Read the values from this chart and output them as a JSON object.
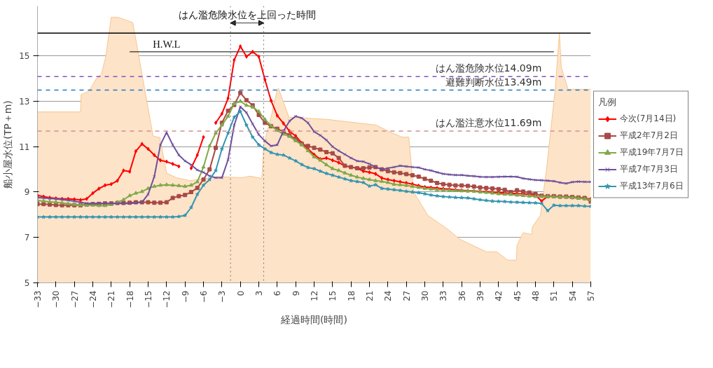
{
  "chart_data": {
    "type": "line",
    "xlabel": "経過時間(時間)",
    "ylabel": "船小屋水位(TP＋m)",
    "legend_title": "凡例",
    "x": [
      -33,
      -32,
      -31,
      -30,
      -29,
      -28,
      -27,
      -26,
      -25,
      -24,
      -23,
      -22,
      -21,
      -20,
      -19,
      -18,
      -17,
      -16,
      -15,
      -14,
      -13,
      -12,
      -11,
      -10,
      -9,
      -8,
      -7,
      -6,
      -5,
      -4,
      -3,
      -2,
      -1,
      0,
      1,
      2,
      3,
      4,
      5,
      6,
      7,
      8,
      9,
      10,
      11,
      12,
      13,
      14,
      15,
      16,
      17,
      18,
      19,
      20,
      21,
      22,
      23,
      24,
      25,
      26,
      27,
      28,
      29,
      30,
      31,
      32,
      33,
      34,
      35,
      36,
      37,
      38,
      39,
      40,
      41,
      42,
      43,
      44,
      45,
      46,
      47,
      48,
      49,
      50,
      51,
      52,
      53,
      54,
      55,
      56,
      57
    ],
    "xlim": [
      -33,
      57
    ],
    "xticks": [
      -33,
      -30,
      -27,
      -24,
      -21,
      -18,
      -15,
      -12,
      -9,
      -6,
      -3,
      0,
      3,
      6,
      9,
      12,
      15,
      18,
      21,
      24,
      27,
      30,
      33,
      36,
      39,
      42,
      45,
      48,
      51,
      54,
      57
    ],
    "ylim": [
      5,
      17.2
    ],
    "yticks": [
      5,
      7,
      9,
      11,
      13,
      15
    ],
    "grid": "y",
    "legend": "right",
    "series": [
      {
        "type": "area",
        "color": "#fde3c8",
        "x": [
          -33,
          -26,
          -25.9,
          -24.6,
          -23.5,
          -22.6,
          -21.9,
          -21,
          -19.9,
          -17.5,
          -14.2,
          -13.1,
          -12,
          -10.4,
          -8.2,
          -6,
          -3.6,
          0.2,
          1.6,
          3.5,
          3.8,
          4.9,
          6,
          6.2,
          6.9,
          7.9,
          14.2,
          22.1,
          24.1,
          26.3,
          27.4,
          28.2,
          30.5,
          33.6,
          35.7,
          40,
          41.7,
          43.5,
          44.9,
          45,
          46,
          47.4,
          47.5,
          48.8,
          49.8,
          51.2,
          51.9,
          52.2,
          53.3,
          57
        ],
        "values": [
          12.53,
          12.53,
          13.29,
          13.45,
          13.97,
          14.2,
          14.95,
          16.7,
          16.7,
          16.47,
          11.47,
          11.4,
          9.84,
          9.63,
          9.5,
          9.58,
          9.68,
          9.63,
          9.7,
          9.6,
          11.08,
          12.2,
          13.5,
          13.58,
          13.05,
          12.3,
          12.2,
          11.95,
          11.68,
          11.42,
          11.42,
          9.0,
          7.97,
          7.39,
          6.92,
          6.37,
          6.37,
          6.0,
          6.0,
          6.66,
          7.21,
          7.13,
          7.47,
          7.97,
          10.0,
          13.5,
          16.0,
          14.5,
          13.53,
          13.53
        ]
      },
      {
        "type": "line",
        "color": "#000000",
        "marker": "none",
        "x": [
          -18,
          51
        ],
        "values": [
          15.18,
          15.18
        ]
      },
      {
        "name": "今次(7月14日)",
        "color": "#ff0000",
        "marker": "diamond",
        "values": [
          8.85,
          8.8,
          8.75,
          8.72,
          8.7,
          8.7,
          8.68,
          8.65,
          8.7,
          8.95,
          9.15,
          9.3,
          9.35,
          9.5,
          9.95,
          9.9,
          10.8,
          11.12,
          10.9,
          10.63,
          10.4,
          10.34,
          10.24,
          10.13,
          null,
          10.05,
          10.63,
          11.42,
          null,
          12.05,
          12.45,
          13.13,
          14.82,
          15.42,
          14.97,
          15.18,
          14.97,
          13.95,
          13.03,
          12.37,
          12.03,
          11.68,
          11.47,
          11.16,
          10.9,
          10.65,
          10.45,
          10.5,
          10.4,
          10.3,
          10.15,
          10.1,
          10.05,
          9.92,
          9.87,
          9.8,
          9.62,
          9.55,
          9.5,
          9.45,
          9.4,
          9.35,
          9.28,
          9.22,
          9.2,
          9.18,
          9.15,
          9.13,
          9.1,
          9.08,
          9.06,
          9.05,
          9.03,
          9.02,
          9.0,
          8.98,
          8.96,
          8.95,
          8.93,
          8.92,
          8.9,
          8.87,
          8.6,
          8.82,
          8.8,
          8.78,
          8.78,
          8.76,
          8.74,
          8.72,
          8.7
        ]
      },
      {
        "name": "平成2年7月2日",
        "color": "#a84a45",
        "marker": "square",
        "values": [
          8.47,
          8.47,
          8.45,
          8.43,
          8.42,
          8.42,
          8.42,
          8.42,
          8.45,
          8.47,
          8.48,
          8.5,
          8.5,
          8.52,
          8.52,
          8.53,
          8.55,
          8.55,
          8.55,
          8.53,
          8.53,
          8.55,
          8.74,
          8.82,
          8.87,
          9.0,
          9.18,
          9.55,
          10.0,
          10.95,
          12.05,
          12.58,
          12.84,
          13.37,
          13.05,
          12.82,
          12.4,
          12.05,
          11.9,
          11.79,
          11.66,
          11.5,
          11.34,
          11.12,
          11.03,
          10.95,
          10.87,
          10.76,
          10.71,
          10.5,
          10.16,
          10.1,
          10.05,
          10.05,
          10.08,
          10.1,
          10.0,
          9.92,
          9.87,
          9.84,
          9.79,
          9.74,
          9.68,
          9.58,
          9.5,
          9.4,
          9.35,
          9.32,
          9.29,
          9.29,
          9.27,
          9.24,
          9.2,
          9.18,
          9.16,
          9.13,
          9.1,
          9.0,
          9.08,
          9.02,
          8.98,
          8.92,
          8.84,
          8.82,
          8.82,
          8.8,
          8.8,
          8.78,
          8.76,
          8.74,
          8.58
        ]
      },
      {
        "name": "平成19年7月7日",
        "color": "#80a94a",
        "marker": "triangle",
        "values": [
          8.63,
          8.6,
          8.57,
          8.55,
          8.52,
          8.48,
          8.45,
          8.43,
          8.42,
          8.42,
          8.4,
          8.4,
          8.45,
          8.55,
          8.66,
          8.84,
          8.95,
          9.02,
          9.16,
          9.25,
          9.3,
          9.32,
          9.3,
          9.28,
          9.25,
          9.3,
          9.45,
          10.1,
          11.03,
          11.6,
          11.95,
          12.34,
          12.9,
          13.0,
          12.82,
          12.74,
          12.55,
          12.2,
          11.92,
          11.71,
          11.55,
          11.45,
          11.26,
          11.08,
          10.82,
          10.55,
          10.4,
          10.2,
          10.03,
          9.95,
          9.84,
          9.74,
          9.66,
          9.6,
          9.55,
          9.5,
          9.47,
          9.42,
          9.34,
          9.32,
          9.29,
          9.25,
          9.2,
          9.16,
          9.13,
          9.1,
          9.09,
          9.08,
          9.06,
          9.05,
          9.04,
          9.03,
          9.0,
          8.98,
          8.95,
          8.92,
          8.9,
          8.89,
          8.86,
          8.84,
          8.82,
          8.8,
          8.8,
          8.8,
          8.79,
          8.78,
          8.77,
          8.75,
          8.73,
          8.7,
          8.66
        ]
      },
      {
        "name": "平成7年7月3日",
        "color": "#6e4f9c",
        "marker": "cross",
        "values": [
          8.76,
          8.74,
          8.72,
          8.7,
          8.67,
          8.64,
          8.6,
          8.55,
          8.5,
          8.5,
          8.5,
          8.5,
          8.5,
          8.5,
          8.5,
          8.5,
          8.52,
          8.55,
          8.9,
          9.68,
          11.08,
          11.63,
          11.08,
          10.63,
          10.37,
          10.2,
          9.97,
          9.87,
          9.71,
          9.63,
          9.63,
          10.42,
          11.95,
          12.76,
          12.5,
          12.0,
          11.53,
          11.25,
          11.03,
          11.08,
          11.68,
          12.13,
          12.34,
          12.26,
          12.05,
          11.66,
          11.5,
          11.29,
          11.0,
          10.82,
          10.66,
          10.5,
          10.37,
          10.34,
          10.24,
          10.1,
          10.0,
          10.05,
          10.1,
          10.16,
          10.13,
          10.1,
          10.08,
          10.0,
          9.95,
          9.87,
          9.8,
          9.77,
          9.75,
          9.75,
          9.72,
          9.7,
          9.67,
          9.66,
          9.66,
          9.67,
          9.68,
          9.68,
          9.67,
          9.6,
          9.56,
          9.53,
          9.52,
          9.5,
          9.48,
          9.42,
          9.38,
          9.44,
          9.46,
          9.45,
          9.45
        ]
      },
      {
        "name": "平成13年7月6日",
        "color": "#3596b0",
        "marker": "star",
        "values": [
          7.9,
          7.9,
          7.9,
          7.9,
          7.9,
          7.9,
          7.9,
          7.9,
          7.9,
          7.9,
          7.9,
          7.9,
          7.9,
          7.9,
          7.9,
          7.9,
          7.9,
          7.9,
          7.9,
          7.9,
          7.9,
          7.9,
          7.9,
          7.92,
          7.97,
          8.32,
          8.9,
          9.3,
          9.55,
          9.95,
          10.9,
          11.6,
          12.3,
          12.55,
          11.95,
          11.42,
          11.08,
          10.9,
          10.74,
          10.66,
          10.63,
          10.5,
          10.37,
          10.21,
          10.08,
          10.03,
          9.92,
          9.82,
          9.74,
          9.66,
          9.58,
          9.5,
          9.46,
          9.42,
          9.26,
          9.32,
          9.16,
          9.13,
          9.1,
          9.07,
          9.03,
          9.0,
          8.97,
          8.92,
          8.87,
          8.83,
          8.8,
          8.78,
          8.76,
          8.75,
          8.74,
          8.7,
          8.66,
          8.63,
          8.6,
          8.59,
          8.58,
          8.56,
          8.55,
          8.54,
          8.53,
          8.52,
          8.5,
          8.18,
          8.42,
          8.4,
          8.4,
          8.4,
          8.4,
          8.38,
          8.37
        ]
      }
    ],
    "ref_lines": [
      {
        "axis": "y",
        "value": 16,
        "color": "#000000",
        "line_style": "solid"
      },
      {
        "axis": "y",
        "value": 14.09,
        "label": "はん濫危険水位14.09m",
        "color": "#8a4fc0",
        "line_style": "dashed"
      },
      {
        "axis": "y",
        "value": 13.49,
        "label": "避難判断水位13.49m",
        "color": "#1f77c4",
        "line_style": "dashed"
      },
      {
        "axis": "y",
        "value": 11.69,
        "label": "はん濫注意水位11.69m",
        "color": "#d09090",
        "line_style": "dashed"
      },
      {
        "axis": "x",
        "value": -1.6,
        "color": "#777777",
        "line_style": "dotted"
      },
      {
        "axis": "x",
        "value": 3.8,
        "color": "#777777",
        "line_style": "dotted"
      }
    ],
    "annotations": [
      "はん濫危険水位を上回った時間",
      {
        "text": "H.W.L",
        "x": -12,
        "y": 15.18
      }
    ]
  }
}
